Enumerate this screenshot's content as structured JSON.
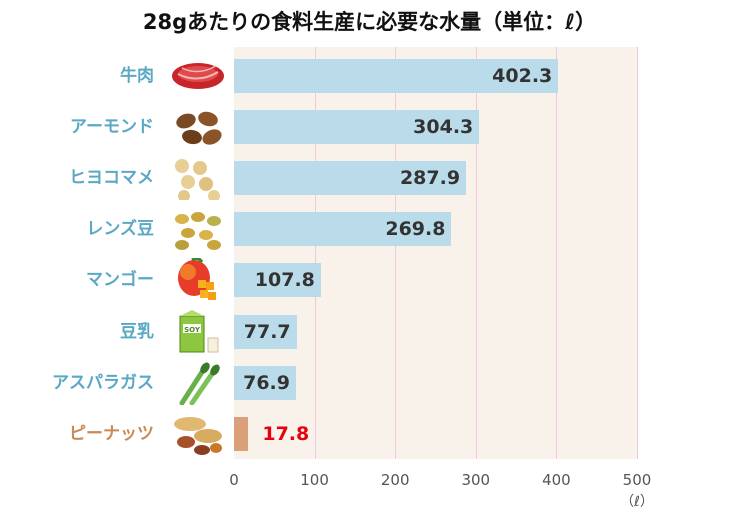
{
  "chart_data": {
    "type": "bar",
    "orientation": "horizontal",
    "title": "28gあたりの食料生産に必要な水量（単位：ℓ）",
    "categories": [
      "牛肉",
      "アーモンド",
      "ヒヨコマメ",
      "レンズ豆",
      "マンゴー",
      "豆乳",
      "アスパラガス",
      "ピーナッツ"
    ],
    "values": [
      402.3,
      304.3,
      287.9,
      269.8,
      107.8,
      77.7,
      76.9,
      17.8
    ],
    "value_labels": [
      "402.3",
      "304.3",
      "287.9",
      "269.8",
      "107.8",
      "77.7",
      "76.9",
      "17.8"
    ],
    "xlim": [
      0,
      500
    ],
    "xticks": [
      0,
      100,
      200,
      300,
      400,
      500
    ],
    "xtick_labels": [
      "0",
      "100",
      "200",
      "300",
      "400",
      "500"
    ],
    "xlabel": "（ℓ）",
    "ylabel": "",
    "grid": "vertical",
    "legend": "none",
    "highlight_index": 7,
    "icons": [
      "beef-icon",
      "almond-icon",
      "chickpea-icon",
      "lentil-icon",
      "mango-icon",
      "soy-milk-icon",
      "asparagus-icon",
      "peanut-icon"
    ],
    "colors": {
      "bar": "#badcea",
      "bar_highlight": "#d9a07a",
      "category_label": "#5aa8c4",
      "category_label_highlight": "#c98a55",
      "value_label": "#333333",
      "value_label_highlight": "#e60012",
      "plot_background": "#f8f2ea",
      "gridline": "#f2c6de"
    }
  }
}
